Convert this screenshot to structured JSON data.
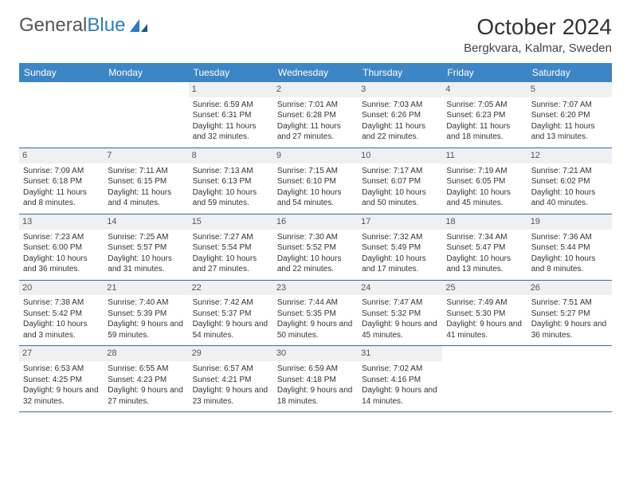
{
  "logo": {
    "part1": "General",
    "part2": "Blue"
  },
  "title": "October 2024",
  "location": "Bergkvara, Kalmar, Sweden",
  "colors": {
    "header_bg": "#3d86c6",
    "header_text": "#ffffff",
    "daynum_bg": "#eef0f2",
    "border": "#2f6ea6",
    "logo_gray": "#555555",
    "logo_blue": "#2b7bbf"
  },
  "day_headers": [
    "Sunday",
    "Monday",
    "Tuesday",
    "Wednesday",
    "Thursday",
    "Friday",
    "Saturday"
  ],
  "weeks": [
    [
      null,
      null,
      {
        "n": "1",
        "sr": "Sunrise: 6:59 AM",
        "ss": "Sunset: 6:31 PM",
        "dl": "Daylight: 11 hours and 32 minutes."
      },
      {
        "n": "2",
        "sr": "Sunrise: 7:01 AM",
        "ss": "Sunset: 6:28 PM",
        "dl": "Daylight: 11 hours and 27 minutes."
      },
      {
        "n": "3",
        "sr": "Sunrise: 7:03 AM",
        "ss": "Sunset: 6:26 PM",
        "dl": "Daylight: 11 hours and 22 minutes."
      },
      {
        "n": "4",
        "sr": "Sunrise: 7:05 AM",
        "ss": "Sunset: 6:23 PM",
        "dl": "Daylight: 11 hours and 18 minutes."
      },
      {
        "n": "5",
        "sr": "Sunrise: 7:07 AM",
        "ss": "Sunset: 6:20 PM",
        "dl": "Daylight: 11 hours and 13 minutes."
      }
    ],
    [
      {
        "n": "6",
        "sr": "Sunrise: 7:09 AM",
        "ss": "Sunset: 6:18 PM",
        "dl": "Daylight: 11 hours and 8 minutes."
      },
      {
        "n": "7",
        "sr": "Sunrise: 7:11 AM",
        "ss": "Sunset: 6:15 PM",
        "dl": "Daylight: 11 hours and 4 minutes."
      },
      {
        "n": "8",
        "sr": "Sunrise: 7:13 AM",
        "ss": "Sunset: 6:13 PM",
        "dl": "Daylight: 10 hours and 59 minutes."
      },
      {
        "n": "9",
        "sr": "Sunrise: 7:15 AM",
        "ss": "Sunset: 6:10 PM",
        "dl": "Daylight: 10 hours and 54 minutes."
      },
      {
        "n": "10",
        "sr": "Sunrise: 7:17 AM",
        "ss": "Sunset: 6:07 PM",
        "dl": "Daylight: 10 hours and 50 minutes."
      },
      {
        "n": "11",
        "sr": "Sunrise: 7:19 AM",
        "ss": "Sunset: 6:05 PM",
        "dl": "Daylight: 10 hours and 45 minutes."
      },
      {
        "n": "12",
        "sr": "Sunrise: 7:21 AM",
        "ss": "Sunset: 6:02 PM",
        "dl": "Daylight: 10 hours and 40 minutes."
      }
    ],
    [
      {
        "n": "13",
        "sr": "Sunrise: 7:23 AM",
        "ss": "Sunset: 6:00 PM",
        "dl": "Daylight: 10 hours and 36 minutes."
      },
      {
        "n": "14",
        "sr": "Sunrise: 7:25 AM",
        "ss": "Sunset: 5:57 PM",
        "dl": "Daylight: 10 hours and 31 minutes."
      },
      {
        "n": "15",
        "sr": "Sunrise: 7:27 AM",
        "ss": "Sunset: 5:54 PM",
        "dl": "Daylight: 10 hours and 27 minutes."
      },
      {
        "n": "16",
        "sr": "Sunrise: 7:30 AM",
        "ss": "Sunset: 5:52 PM",
        "dl": "Daylight: 10 hours and 22 minutes."
      },
      {
        "n": "17",
        "sr": "Sunrise: 7:32 AM",
        "ss": "Sunset: 5:49 PM",
        "dl": "Daylight: 10 hours and 17 minutes."
      },
      {
        "n": "18",
        "sr": "Sunrise: 7:34 AM",
        "ss": "Sunset: 5:47 PM",
        "dl": "Daylight: 10 hours and 13 minutes."
      },
      {
        "n": "19",
        "sr": "Sunrise: 7:36 AM",
        "ss": "Sunset: 5:44 PM",
        "dl": "Daylight: 10 hours and 8 minutes."
      }
    ],
    [
      {
        "n": "20",
        "sr": "Sunrise: 7:38 AM",
        "ss": "Sunset: 5:42 PM",
        "dl": "Daylight: 10 hours and 3 minutes."
      },
      {
        "n": "21",
        "sr": "Sunrise: 7:40 AM",
        "ss": "Sunset: 5:39 PM",
        "dl": "Daylight: 9 hours and 59 minutes."
      },
      {
        "n": "22",
        "sr": "Sunrise: 7:42 AM",
        "ss": "Sunset: 5:37 PM",
        "dl": "Daylight: 9 hours and 54 minutes."
      },
      {
        "n": "23",
        "sr": "Sunrise: 7:44 AM",
        "ss": "Sunset: 5:35 PM",
        "dl": "Daylight: 9 hours and 50 minutes."
      },
      {
        "n": "24",
        "sr": "Sunrise: 7:47 AM",
        "ss": "Sunset: 5:32 PM",
        "dl": "Daylight: 9 hours and 45 minutes."
      },
      {
        "n": "25",
        "sr": "Sunrise: 7:49 AM",
        "ss": "Sunset: 5:30 PM",
        "dl": "Daylight: 9 hours and 41 minutes."
      },
      {
        "n": "26",
        "sr": "Sunrise: 7:51 AM",
        "ss": "Sunset: 5:27 PM",
        "dl": "Daylight: 9 hours and 36 minutes."
      }
    ],
    [
      {
        "n": "27",
        "sr": "Sunrise: 6:53 AM",
        "ss": "Sunset: 4:25 PM",
        "dl": "Daylight: 9 hours and 32 minutes."
      },
      {
        "n": "28",
        "sr": "Sunrise: 6:55 AM",
        "ss": "Sunset: 4:23 PM",
        "dl": "Daylight: 9 hours and 27 minutes."
      },
      {
        "n": "29",
        "sr": "Sunrise: 6:57 AM",
        "ss": "Sunset: 4:21 PM",
        "dl": "Daylight: 9 hours and 23 minutes."
      },
      {
        "n": "30",
        "sr": "Sunrise: 6:59 AM",
        "ss": "Sunset: 4:18 PM",
        "dl": "Daylight: 9 hours and 18 minutes."
      },
      {
        "n": "31",
        "sr": "Sunrise: 7:02 AM",
        "ss": "Sunset: 4:16 PM",
        "dl": "Daylight: 9 hours and 14 minutes."
      },
      null,
      null
    ]
  ]
}
